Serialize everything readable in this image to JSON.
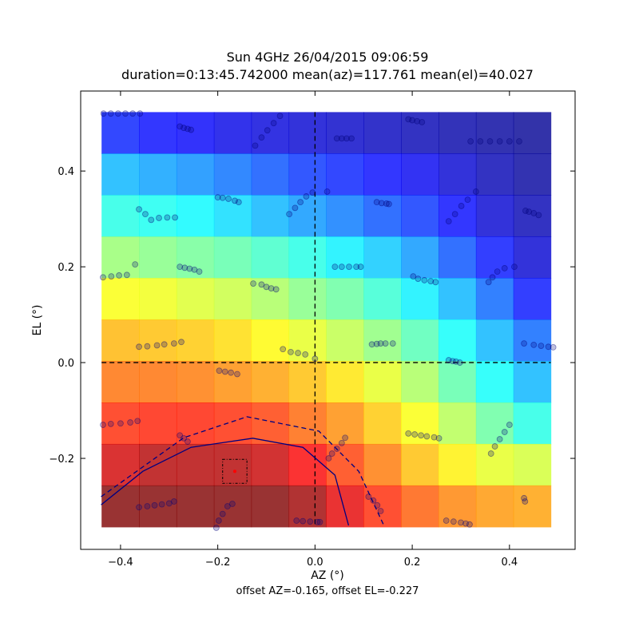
{
  "chart_data": {
    "type": "heatmap",
    "title": [
      "Sun 4GHz 26/04/2015 09:06:59",
      "duration=0:13:45.742000 mean(az)=117.761 mean(el)=40.027"
    ],
    "x_label": "AZ (°)",
    "x_sublabel": "offset AZ=-0.165, offset EL=-0.227",
    "y_label": "EL (°)",
    "xlim": [
      -0.482,
      0.535
    ],
    "ylim": [
      -0.39,
      0.567
    ],
    "xticks": [
      {
        "value": -0.4,
        "label": "−0.4"
      },
      {
        "value": -0.2,
        "label": "−0.2"
      },
      {
        "value": 0,
        "label": "0.0"
      },
      0.2,
      0.4
    ],
    "yticks": [
      {
        "value": -0.2,
        "label": "−0.2"
      },
      {
        "value": 0,
        "label": "0.0"
      },
      0.2,
      0.4
    ],
    "heatmap": {
      "colormap": "jet",
      "extent": [
        -0.439,
        0.485,
        -0.343,
        0.523
      ],
      "values": [
        [
          0.15,
          0.13,
          0.12,
          0.1,
          0.09,
          0.08,
          0.07,
          0.06,
          0.05,
          0.04,
          0.03,
          0.02
        ],
        [
          0.3,
          0.28,
          0.26,
          0.23,
          0.2,
          0.17,
          0.15,
          0.13,
          0.11,
          0.08,
          0.05,
          0.03
        ],
        [
          0.4,
          0.39,
          0.37,
          0.34,
          0.3,
          0.27,
          0.24,
          0.2,
          0.17,
          0.13,
          0.08,
          0.05
        ],
        [
          0.52,
          0.5,
          0.48,
          0.46,
          0.43,
          0.4,
          0.36,
          0.32,
          0.27,
          0.2,
          0.14,
          0.08
        ],
        [
          0.62,
          0.61,
          0.59,
          0.57,
          0.54,
          0.5,
          0.47,
          0.42,
          0.36,
          0.3,
          0.22,
          0.14
        ],
        [
          0.7,
          0.69,
          0.68,
          0.66,
          0.63,
          0.6,
          0.56,
          0.51,
          0.45,
          0.38,
          0.3,
          0.22
        ],
        [
          0.77,
          0.77,
          0.76,
          0.74,
          0.72,
          0.69,
          0.65,
          0.6,
          0.54,
          0.46,
          0.38,
          0.3
        ],
        [
          0.84,
          0.85,
          0.85,
          0.84,
          0.82,
          0.78,
          0.74,
          0.68,
          0.62,
          0.55,
          0.47,
          0.4
        ],
        [
          0.92,
          0.95,
          0.95,
          0.95,
          0.93,
          0.88,
          0.82,
          0.76,
          0.69,
          0.64,
          0.6,
          0.58
        ],
        [
          1.0,
          1.0,
          1.0,
          1.0,
          1.0,
          0.97,
          0.9,
          0.84,
          0.79,
          0.75,
          0.73,
          0.72
        ]
      ]
    },
    "contours": [
      {
        "style": "solid",
        "color": "#000080",
        "x": [
          -0.44,
          -0.354,
          -0.255,
          -0.128,
          -0.025,
          0.041,
          0.069
        ],
        "y": [
          -0.297,
          -0.227,
          -0.177,
          -0.158,
          -0.177,
          -0.235,
          -0.34
        ]
      },
      {
        "style": "dashed",
        "color": "#000080",
        "x": [
          -0.44,
          -0.27,
          -0.14,
          0.008,
          0.09,
          0.143
        ],
        "y": [
          -0.28,
          -0.157,
          -0.113,
          -0.143,
          -0.227,
          -0.343
        ]
      }
    ],
    "reference_lines": {
      "x": 0,
      "y": 0
    },
    "marker": {
      "x": -0.165,
      "y": -0.227,
      "box_half": 0.025,
      "color": "#ff0000"
    },
    "scatter": {
      "color": "#00007a",
      "x": [
        -0.435,
        -0.42,
        -0.405,
        -0.39,
        -0.375,
        -0.36,
        -0.278,
        -0.27,
        -0.262,
        -0.255,
        -0.123,
        -0.11,
        -0.098,
        -0.085,
        -0.072,
        0.045,
        0.055,
        0.065,
        0.075,
        0.192,
        0.2,
        0.21,
        0.22,
        0.32,
        0.34,
        0.36,
        0.38,
        0.4,
        0.42,
        -0.2,
        -0.19,
        -0.178,
        -0.165,
        -0.157,
        -0.362,
        -0.349,
        -0.337,
        -0.321,
        -0.304,
        -0.288,
        -0.053,
        -0.041,
        -0.03,
        -0.018,
        -0.005,
        0.025,
        0.127,
        0.137,
        0.147,
        0.152,
        0.275,
        0.288,
        0.301,
        0.314,
        0.331,
        0.433,
        0.44,
        0.45,
        0.46,
        -0.436,
        -0.419,
        -0.403,
        -0.387,
        -0.37,
        -0.278,
        -0.268,
        -0.258,
        -0.248,
        -0.238,
        -0.127,
        -0.11,
        -0.1,
        -0.09,
        -0.08,
        0.041,
        0.055,
        0.07,
        0.085,
        0.094,
        0.202,
        0.212,
        0.225,
        0.238,
        0.248,
        0.357,
        0.365,
        0.375,
        0.39,
        0.41,
        -0.362,
        -0.345,
        -0.325,
        -0.31,
        -0.29,
        -0.275,
        -0.197,
        -0.185,
        -0.173,
        -0.16,
        -0.066,
        -0.05,
        -0.035,
        -0.02,
        0.0,
        0.117,
        0.127,
        0.135,
        0.145,
        0.16,
        0.275,
        0.283,
        0.29,
        0.298,
        0.43,
        0.45,
        0.465,
        0.48,
        0.49,
        -0.436,
        -0.42,
        -0.4,
        -0.38,
        -0.365,
        -0.278,
        -0.27,
        -0.262,
        0.028,
        0.035,
        0.045,
        0.055,
        0.062,
        0.192,
        0.205,
        0.218,
        0.23,
        0.245,
        0.255,
        0.362,
        0.37,
        0.38,
        0.39,
        0.4,
        -0.362,
        -0.345,
        -0.33,
        -0.315,
        -0.3,
        -0.29,
        -0.203,
        -0.198,
        -0.19,
        -0.18,
        -0.17,
        -0.038,
        -0.025,
        -0.01,
        0.005,
        0.01,
        0.11,
        0.12,
        0.128,
        0.135,
        0.27,
        0.285,
        0.3,
        0.31,
        0.318,
        0.43,
        0.432
      ],
      "y": [
        0.52,
        0.52,
        0.52,
        0.52,
        0.52,
        0.52,
        0.493,
        0.49,
        0.488,
        0.486,
        0.453,
        0.47,
        0.485,
        0.5,
        0.515,
        0.468,
        0.468,
        0.468,
        0.468,
        0.508,
        0.506,
        0.504,
        0.502,
        0.462,
        0.462,
        0.462,
        0.462,
        0.462,
        0.462,
        0.345,
        0.344,
        0.342,
        0.338,
        0.335,
        0.32,
        0.31,
        0.298,
        0.302,
        0.303,
        0.303,
        0.31,
        0.323,
        0.335,
        0.347,
        0.355,
        0.357,
        0.335,
        0.333,
        0.332,
        0.331,
        0.295,
        0.31,
        0.327,
        0.34,
        0.357,
        0.317,
        0.315,
        0.312,
        0.308,
        0.178,
        0.18,
        0.182,
        0.183,
        0.205,
        0.2,
        0.198,
        0.196,
        0.194,
        0.19,
        0.165,
        0.163,
        0.158,
        0.155,
        0.153,
        0.2,
        0.2,
        0.2,
        0.2,
        0.2,
        0.18,
        0.175,
        0.172,
        0.17,
        0.168,
        0.168,
        0.178,
        0.19,
        0.197,
        0.2,
        0.033,
        0.034,
        0.036,
        0.038,
        0.04,
        0.043,
        -0.017,
        -0.019,
        -0.021,
        -0.024,
        0.028,
        0.022,
        0.02,
        0.017,
        0.008,
        0.038,
        0.039,
        0.04,
        0.04,
        0.04,
        0.005,
        0.003,
        0.002,
        0.0,
        0.04,
        0.037,
        0.035,
        0.033,
        0.032,
        -0.13,
        -0.128,
        -0.127,
        -0.125,
        -0.122,
        -0.152,
        -0.158,
        -0.165,
        -0.2,
        -0.19,
        -0.18,
        -0.168,
        -0.157,
        -0.148,
        -0.15,
        -0.152,
        -0.154,
        -0.156,
        -0.158,
        -0.19,
        -0.175,
        -0.16,
        -0.145,
        -0.13,
        -0.302,
        -0.3,
        -0.298,
        -0.296,
        -0.294,
        -0.29,
        -0.345,
        -0.33,
        -0.316,
        -0.3,
        -0.295,
        -0.33,
        -0.331,
        -0.332,
        -0.333,
        -0.333,
        -0.28,
        -0.288,
        -0.298,
        -0.31,
        -0.33,
        -0.332,
        -0.334,
        -0.336,
        -0.338,
        -0.283,
        -0.29
      ]
    }
  }
}
